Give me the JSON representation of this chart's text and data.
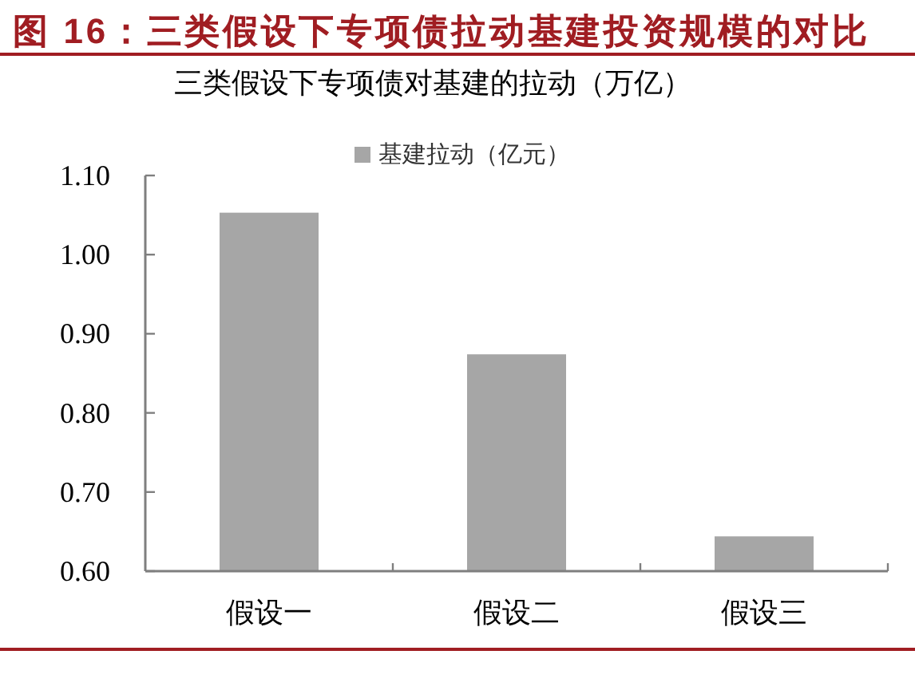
{
  "chart_data": {
    "type": "bar",
    "title": "图 16：三类假设下专项债拉动基建投资规模的对比",
    "subtitle": "三类假设下专项债对基建的拉动（万亿）",
    "categories": [
      "假设一",
      "假设二",
      "假设三"
    ],
    "series": [
      {
        "name": "基建拉动（亿元）",
        "color": "#a6a6a6",
        "values": [
          1.053,
          0.874,
          0.644
        ]
      }
    ],
    "ylim": [
      0.6,
      1.1
    ],
    "yticks": [
      {
        "value": 0.6,
        "label": "0.60"
      },
      {
        "value": 0.7,
        "label": "0.70"
      },
      {
        "value": 0.8,
        "label": "0.80"
      },
      {
        "value": 0.9,
        "label": "0.90"
      },
      {
        "value": 1.0,
        "label": "1.00"
      },
      {
        "value": 1.1,
        "label": "1.10"
      }
    ],
    "grid": false,
    "legend": "top"
  }
}
